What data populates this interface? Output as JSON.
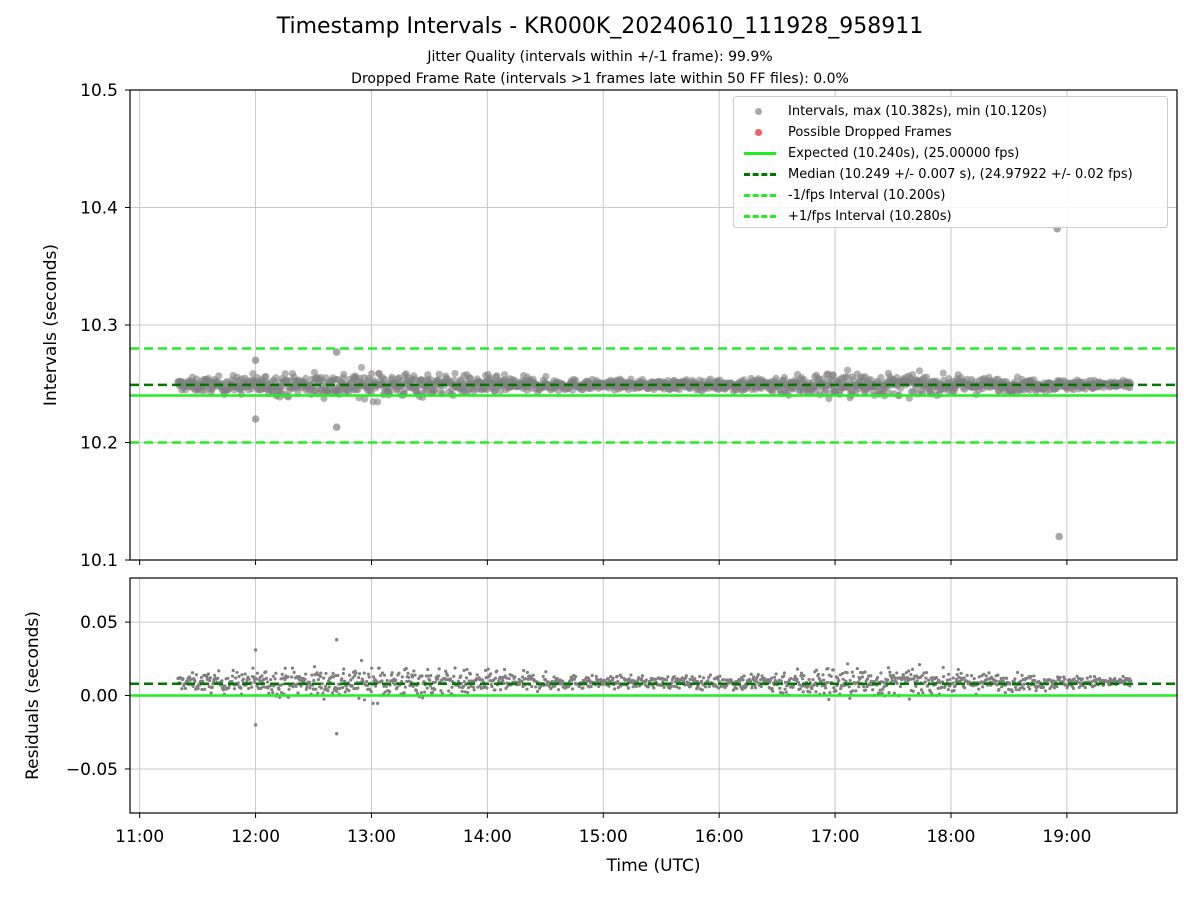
{
  "title": "Timestamp Intervals - KR000K_20240610_111928_958911",
  "subtitle_1": "Jitter Quality (intervals within +/-1 frame): 99.9%",
  "subtitle_2": "Dropped Frame Rate (intervals >1 frames late within 50 FF files): 0.0%",
  "colors": {
    "points": "#808080",
    "dropped": "#e8262a",
    "expected": "#22ee22",
    "median": "#007700",
    "bound": "#22ee22",
    "grid": "#c8c8c8"
  },
  "legend": [
    {
      "label": "Intervals, max (10.382s), min (10.120s)",
      "marker": "dot",
      "color": "#a9a9a9"
    },
    {
      "label": "Possible Dropped Frames",
      "marker": "dot",
      "color": "#f06060"
    },
    {
      "label": "Expected (10.240s), (25.00000 fps)",
      "marker": "solid",
      "color": "#22ee22"
    },
    {
      "label": "Median (10.249 +/- 0.007 s), (24.97922 +/- 0.02 fps)",
      "marker": "dashed",
      "color": "#007700"
    },
    {
      "label": "-1/fps Interval (10.200s)",
      "marker": "dashed",
      "color": "#22ee22"
    },
    {
      "label": "+1/fps Interval (10.280s)",
      "marker": "dashed",
      "color": "#22ee22"
    }
  ],
  "chart_data": [
    {
      "type": "scatter",
      "name": "intervals",
      "ylabel": "Intervals (seconds)",
      "xlabel": "",
      "ylim": [
        10.1,
        10.5
      ],
      "yticks": [
        "10.1",
        "10.2",
        "10.3",
        "10.4",
        "10.5"
      ],
      "x_range_hours": [
        11.33,
        19.55
      ],
      "xlim": [
        "10:55",
        "19:57"
      ],
      "grid": true,
      "legend_position": "top-right",
      "reference_lines": {
        "expected": 10.24,
        "median": 10.249,
        "minus_1_fps": 10.2,
        "plus_1_fps": 10.28
      },
      "outliers": [
        {
          "x": "18:55",
          "y": 10.382
        },
        {
          "x": "18:56",
          "y": 10.12
        },
        {
          "x": "12:00",
          "y": 10.27
        },
        {
          "x": "12:00",
          "y": 10.22
        },
        {
          "x": "12:42",
          "y": 10.213
        },
        {
          "x": "12:42",
          "y": 10.277
        }
      ],
      "spread_profile": [
        {
          "x": "11:20",
          "amp": 0.008
        },
        {
          "x": "12:00",
          "amp": 0.013
        },
        {
          "x": "13:00",
          "amp": 0.018
        },
        {
          "x": "14:00",
          "amp": 0.012
        },
        {
          "x": "15:00",
          "amp": 0.006
        },
        {
          "x": "16:00",
          "amp": 0.007
        },
        {
          "x": "17:00",
          "amp": 0.018
        },
        {
          "x": "18:00",
          "amp": 0.011
        },
        {
          "x": "19:30",
          "amp": 0.005
        }
      ]
    },
    {
      "type": "scatter",
      "name": "residuals",
      "ylabel": "Residuals (seconds)",
      "xlabel": "Time (UTC)",
      "ylim": [
        -0.08,
        0.08
      ],
      "yticks": [
        "−0.05",
        "0.00",
        "0.05"
      ],
      "xticks": [
        "11:00",
        "12:00",
        "13:00",
        "14:00",
        "15:00",
        "16:00",
        "17:00",
        "18:00",
        "19:00"
      ],
      "grid": true,
      "reference_lines": {
        "zero": 0.0,
        "median_offset": 0.008
      },
      "outliers": [
        {
          "x": "12:00",
          "y": 0.031
        },
        {
          "x": "12:00",
          "y": -0.02
        },
        {
          "x": "12:42",
          "y": 0.038
        },
        {
          "x": "12:42",
          "y": -0.026
        }
      ]
    }
  ]
}
